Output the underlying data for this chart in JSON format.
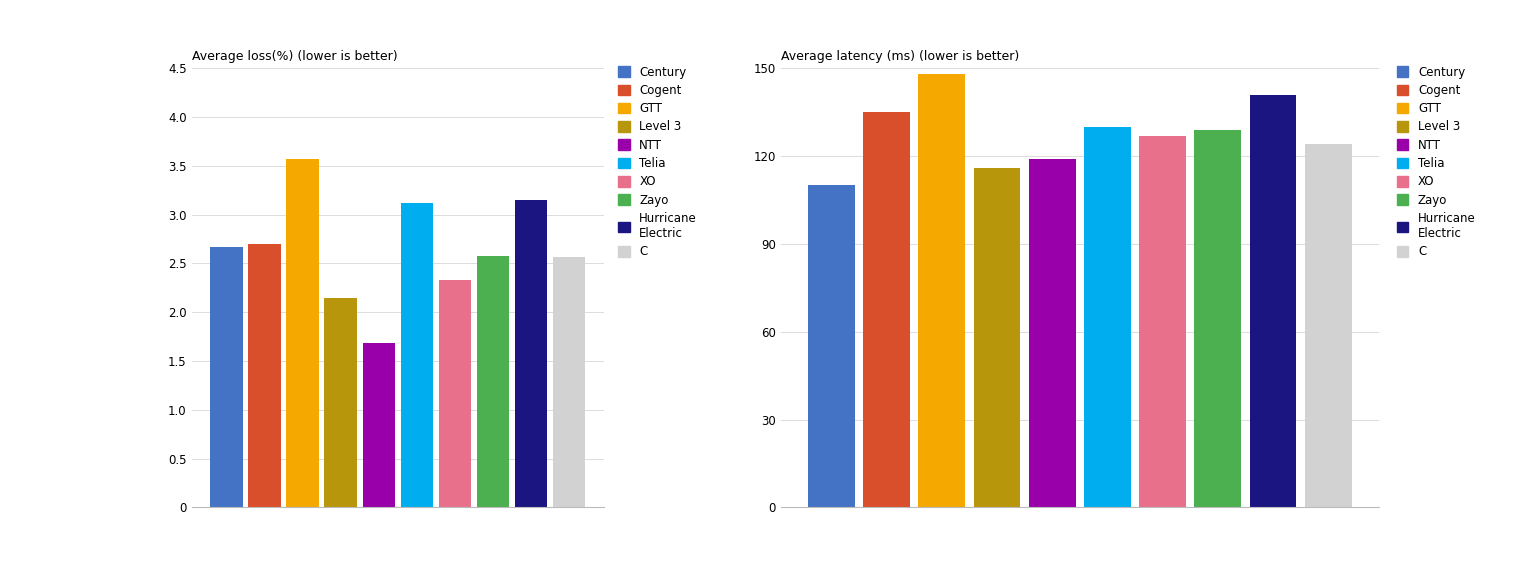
{
  "loss_title": "Average loss(%) (lower is better)",
  "latency_title": "Average latency (ms) (lower is better)",
  "legend_labels": [
    "Century",
    "Cogent",
    "GTT",
    "Level 3",
    "NTT",
    "Telia",
    "XO",
    "Zayo",
    "Hurricane\nElectric",
    "C"
  ],
  "loss_values": [
    2.67,
    2.7,
    3.57,
    2.15,
    1.68,
    3.12,
    2.33,
    2.58,
    3.15,
    2.57
  ],
  "latency_values": [
    110,
    135,
    148,
    116,
    119,
    130,
    127,
    129,
    141,
    124
  ],
  "colors": [
    "#4472C4",
    "#D94F2B",
    "#F5A800",
    "#B8960C",
    "#9900AA",
    "#00AEEF",
    "#E8708A",
    "#4CAF50",
    "#1A1580",
    "#D2D2D2"
  ],
  "loss_ylim": [
    0,
    4.5
  ],
  "loss_yticks": [
    0,
    0.5,
    1.0,
    1.5,
    2.0,
    2.5,
    3.0,
    3.5,
    4.0,
    4.5
  ],
  "latency_ylim": [
    0,
    150
  ],
  "latency_yticks": [
    0,
    30,
    60,
    90,
    120,
    150
  ],
  "title_fontsize": 9,
  "tick_fontsize": 8.5,
  "legend_fontsize": 8.5,
  "bar_width": 0.85
}
